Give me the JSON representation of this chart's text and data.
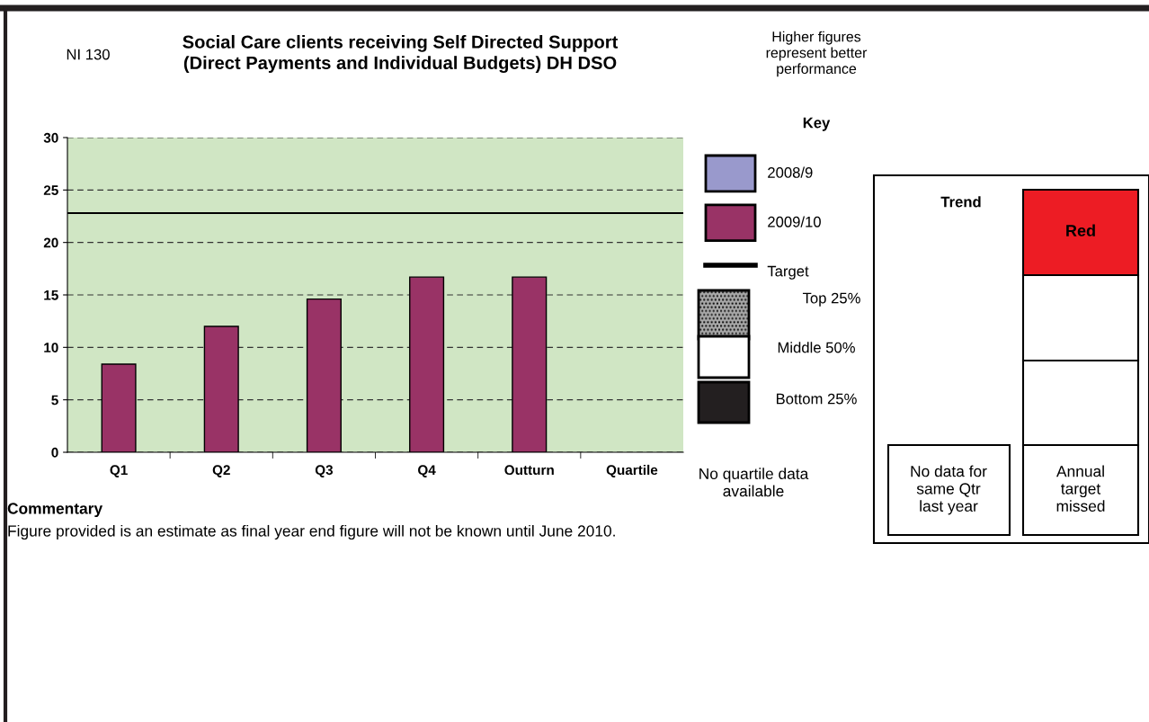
{
  "chart_data": {
    "type": "bar",
    "title": "Social Care clients receiving Self Directed Support\n(Direct Payments and Individual Budgets) DH DSO",
    "categories": [
      "Q1",
      "Q2",
      "Q3",
      "Q4",
      "Outturn",
      "Quartile"
    ],
    "series": [
      {
        "name": "2008/9",
        "color": "#9999cc",
        "values": [
          null,
          null,
          null,
          null,
          null,
          null
        ]
      },
      {
        "name": "2009/10",
        "color": "#993366",
        "values": [
          8.4,
          12.0,
          14.6,
          16.7,
          16.7,
          null
        ]
      }
    ],
    "ylim": [
      0,
      30
    ],
    "yticks": [
      0,
      5,
      10,
      15,
      20,
      25,
      30
    ],
    "grid": "y",
    "legend": "right",
    "ref_lines": [
      {
        "axis": "y",
        "value": 22.8,
        "label": "Target",
        "color": "#000000"
      }
    ],
    "annotations": [
      "NI 130",
      "Higher figures\nrepresent better\nperformance",
      "Key",
      "Top 25%",
      "Middle 50%",
      "Bottom 25%",
      "No quartile data\navailable",
      "Trend",
      "Red",
      "No data for\nsame Qtr\nlast year",
      "Annual\ntarget\nmissed",
      "Commentary",
      "Figure provided is an estimate as final year end figure will not be known until June 2010."
    ]
  }
}
